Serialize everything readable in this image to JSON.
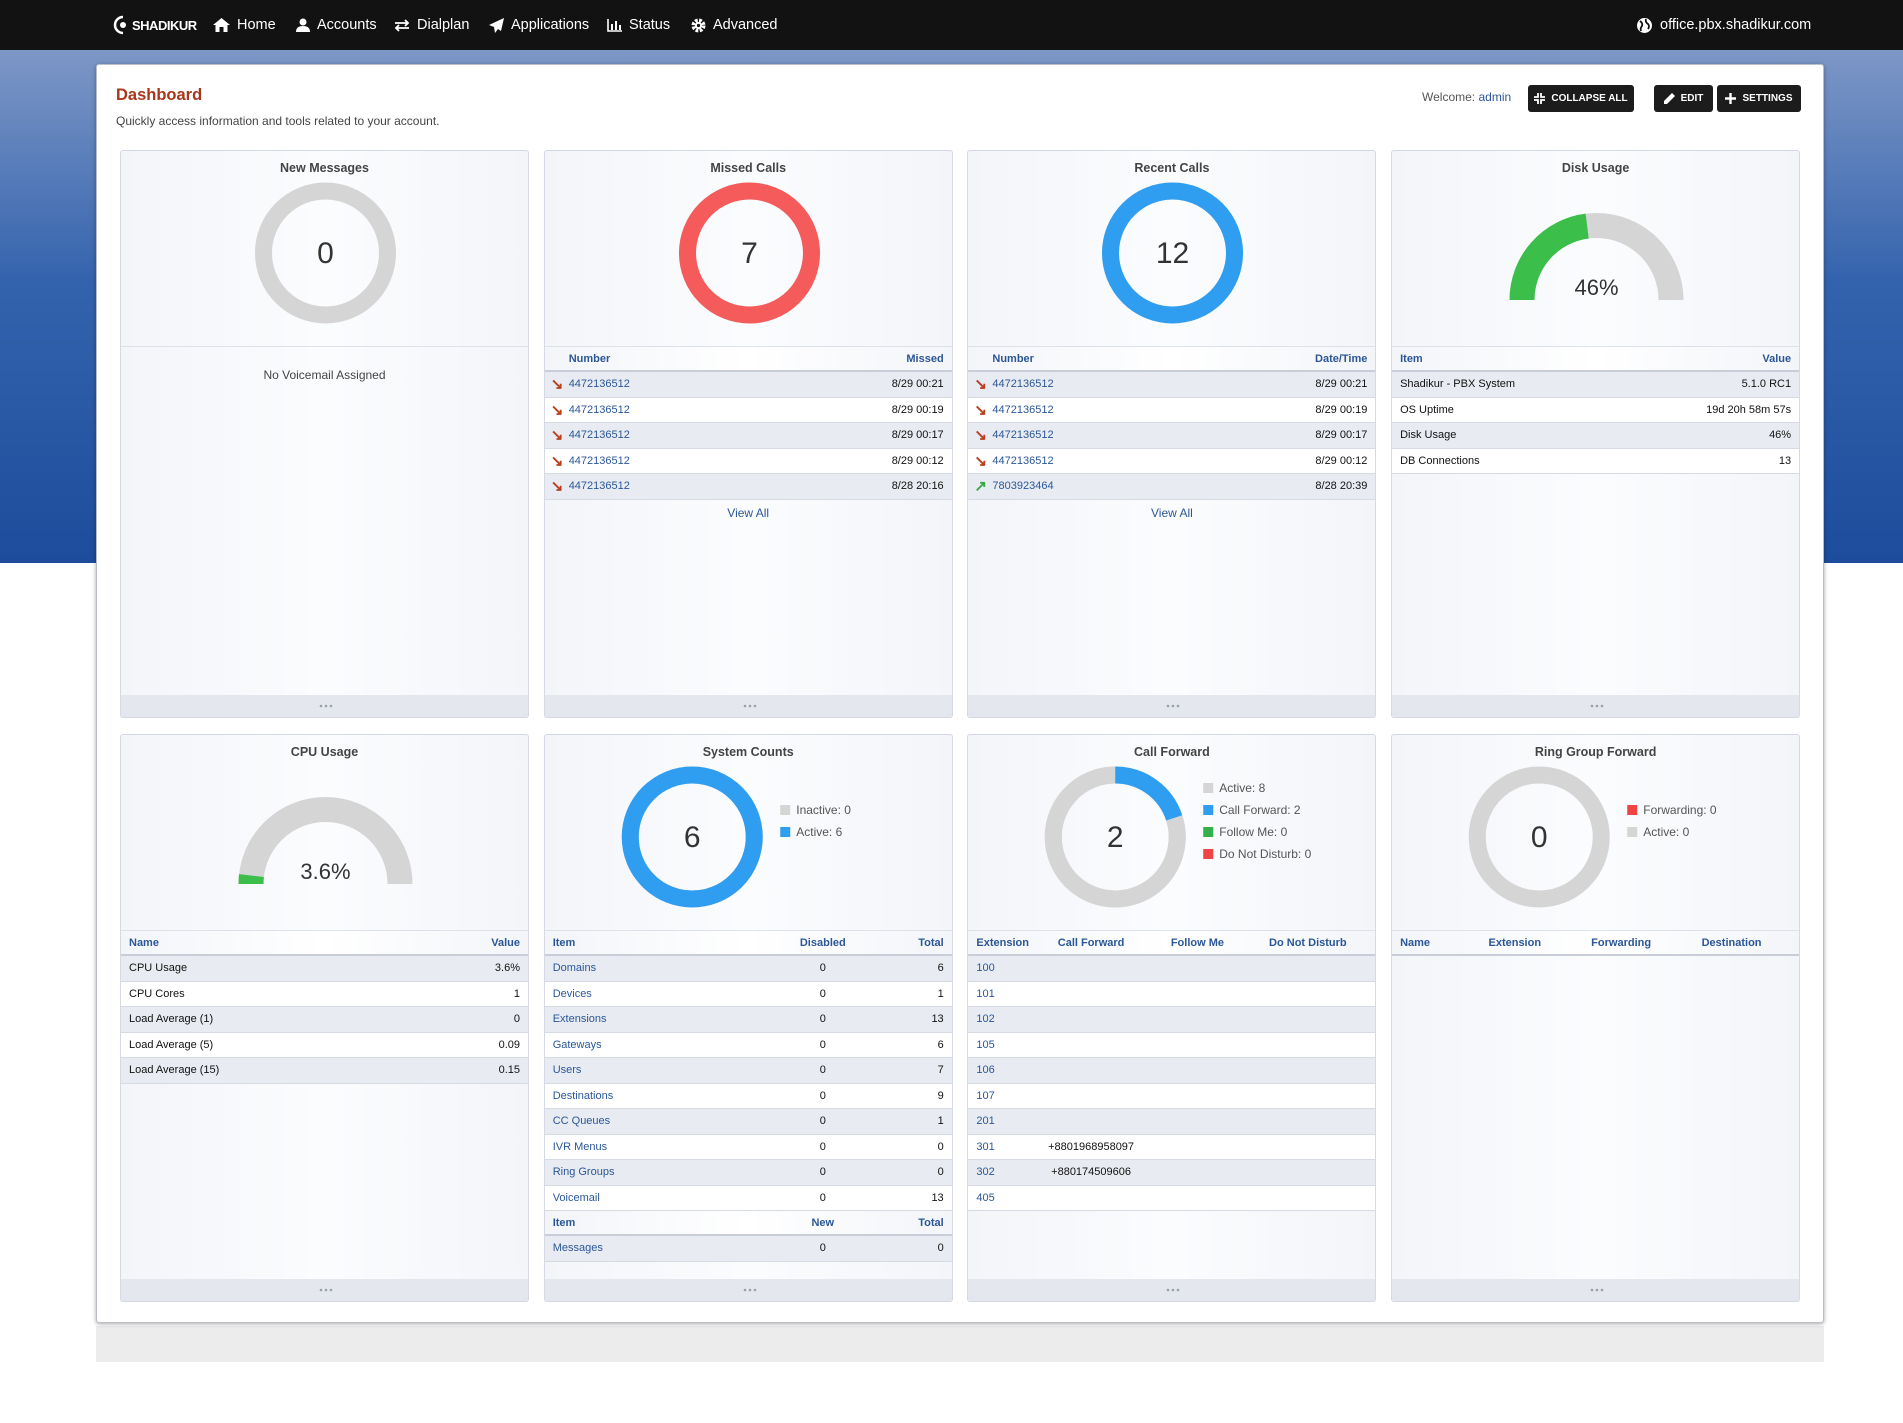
{
  "nav": {
    "brand": "SHADIKUR",
    "items": [
      "Home",
      "Accounts",
      "Dialplan",
      "Applications",
      "Status",
      "Advanced"
    ],
    "domain": "office.pbx.shadikur.com"
  },
  "header": {
    "title": "Dashboard",
    "subtitle": "Quickly access information and tools related to your account.",
    "welcome": "Welcome:",
    "user": "admin",
    "buttons": [
      "COLLAPSE ALL",
      "EDIT",
      "SETTINGS"
    ]
  },
  "widgets": [
    {
      "title": "New Messages",
      "chart": {
        "type": "donut",
        "value": 0
      },
      "message": "No Voicemail Assigned"
    },
    {
      "title": "Missed Calls",
      "chart": {
        "type": "donut",
        "value": 7,
        "color": "#f55b5b"
      },
      "tables": [
        {
          "columns": [
            "Number",
            "Missed"
          ],
          "first_column_color": "#2b5797",
          "rows": [
            [
              "4472136512",
              "8/29 00:21"
            ],
            [
              "4472136512",
              "8/29 00:19"
            ],
            [
              "4472136512",
              "8/29 00:17"
            ],
            [
              "4472136512",
              "8/29 00:12"
            ],
            [
              "4472136512",
              "8/28 20:16"
            ]
          ],
          "row_icons": [
            {
              "glyph": "↘",
              "color": "#b8401f"
            },
            {
              "glyph": "↘",
              "color": "#b8401f"
            },
            {
              "glyph": "↘",
              "color": "#b8401f"
            },
            {
              "glyph": "↘",
              "color": "#b8401f"
            },
            {
              "glyph": "↘",
              "color": "#b8401f"
            }
          ]
        }
      ],
      "link": "View All"
    },
    {
      "title": "Recent Calls",
      "chart": {
        "type": "donut",
        "value": 12,
        "color": "#2f9ef0"
      },
      "tables": [
        {
          "columns": [
            "Number",
            "Date/Time"
          ],
          "first_column_color": "#2b5797",
          "rows": [
            [
              "4472136512",
              "8/29 00:21"
            ],
            [
              "4472136512",
              "8/29 00:19"
            ],
            [
              "4472136512",
              "8/29 00:17"
            ],
            [
              "4472136512",
              "8/29 00:12"
            ],
            [
              "7803923464",
              "8/28 20:39"
            ]
          ],
          "row_icons": [
            {
              "glyph": "↘",
              "color": "#b8401f"
            },
            {
              "glyph": "↘",
              "color": "#b8401f"
            },
            {
              "glyph": "↘",
              "color": "#b8401f"
            },
            {
              "glyph": "↘",
              "color": "#b8401f"
            },
            {
              "glyph": "↗",
              "color": "#3aa845"
            }
          ]
        }
      ],
      "link": "View All"
    },
    {
      "title": "Disk Usage",
      "chart": {
        "type": "gauge",
        "value": 46,
        "value_label": "46%",
        "range": [
          0,
          100
        ],
        "color": "#3bbf4a"
      },
      "tables": [
        {
          "columns": [
            "Item",
            "Value"
          ],
          "rows": [
            [
              "Shadikur - PBX System",
              "5.1.0 RC1"
            ],
            [
              "OS Uptime",
              "19d 20h 58m 57s"
            ],
            [
              "Disk Usage",
              "46%"
            ],
            [
              "DB Connections",
              "13"
            ]
          ]
        }
      ]
    },
    {
      "title": "CPU Usage",
      "chart": {
        "type": "gauge",
        "value": 3.6,
        "value_label": "3.6%",
        "range": [
          0,
          100
        ],
        "color": "#3bbf4a"
      },
      "tables": [
        {
          "columns": [
            "Name",
            "Value"
          ],
          "rows": [
            [
              "CPU Usage",
              "3.6%"
            ],
            [
              "CPU Cores",
              "1"
            ],
            [
              "Load Average (1)",
              "0"
            ],
            [
              "Load Average (5)",
              "0.09"
            ],
            [
              "Load Average (15)",
              "0.15"
            ]
          ]
        }
      ]
    },
    {
      "title": "System Counts",
      "chart": {
        "type": "donut",
        "value": 6,
        "segments": [
          {
            "name": "Inactive: 0",
            "value": 0,
            "color": "#d5d5d5"
          },
          {
            "name": "Active: 6",
            "value": 6,
            "color": "#2f9ef0"
          }
        ]
      },
      "tables": [
        {
          "columns": [
            "Item",
            "Disabled",
            "Total"
          ],
          "first_column_color": "#2b5797",
          "rows": [
            [
              "Domains",
              "0",
              "6"
            ],
            [
              "Devices",
              "0",
              "1"
            ],
            [
              "Extensions",
              "0",
              "13"
            ],
            [
              "Gateways",
              "0",
              "6"
            ],
            [
              "Users",
              "0",
              "7"
            ],
            [
              "Destinations",
              "0",
              "9"
            ],
            [
              "CC Queues",
              "0",
              "1"
            ],
            [
              "IVR Menus",
              "0",
              "0"
            ],
            [
              "Ring Groups",
              "0",
              "0"
            ],
            [
              "Voicemail",
              "0",
              "13"
            ]
          ]
        },
        {
          "columns": [
            "Item",
            "New",
            "Total"
          ],
          "first_column_color": "#2b5797",
          "rows": [
            [
              "Messages",
              "0",
              "0"
            ]
          ]
        }
      ]
    },
    {
      "title": "Call Forward",
      "chart": {
        "type": "donut",
        "value": 2,
        "segments": [
          {
            "name": "Active: 8",
            "value": 8,
            "color": "#d5d5d5"
          },
          {
            "name": "Call Forward: 2",
            "value": 2,
            "color": "#2f9ef0"
          },
          {
            "name": "Follow Me: 0",
            "value": 0,
            "color": "#33b04a"
          },
          {
            "name": "Do Not Disturb: 0",
            "value": 0,
            "color": "#f04545"
          }
        ]
      },
      "tables": [
        {
          "columns": [
            "Extension",
            "Call Forward",
            "Follow Me",
            "Do Not Disturb"
          ],
          "first_column_color": "#2b5797",
          "rows": [
            [
              "100",
              null,
              null,
              null
            ],
            [
              "101",
              null,
              null,
              null
            ],
            [
              "102",
              null,
              null,
              null
            ],
            [
              "105",
              null,
              null,
              null
            ],
            [
              "106",
              null,
              null,
              null
            ],
            [
              "107",
              null,
              null,
              null
            ],
            [
              "201",
              null,
              null,
              null
            ],
            [
              "301",
              "+8801968958097",
              null,
              null
            ],
            [
              "302",
              "+880174509606",
              null,
              null
            ],
            [
              "405",
              null,
              null,
              null
            ]
          ]
        }
      ]
    },
    {
      "title": "Ring Group Forward",
      "chart": {
        "type": "donut",
        "value": 0,
        "segments": [
          {
            "name": "Forwarding: 0",
            "value": 0,
            "color": "#f04545"
          },
          {
            "name": "Active: 0",
            "value": 0,
            "color": "#d5d5d5"
          }
        ]
      },
      "tables": [
        {
          "columns": [
            "Name",
            "Extension",
            "Forwarding",
            "Destination"
          ],
          "rows": []
        }
      ]
    }
  ]
}
